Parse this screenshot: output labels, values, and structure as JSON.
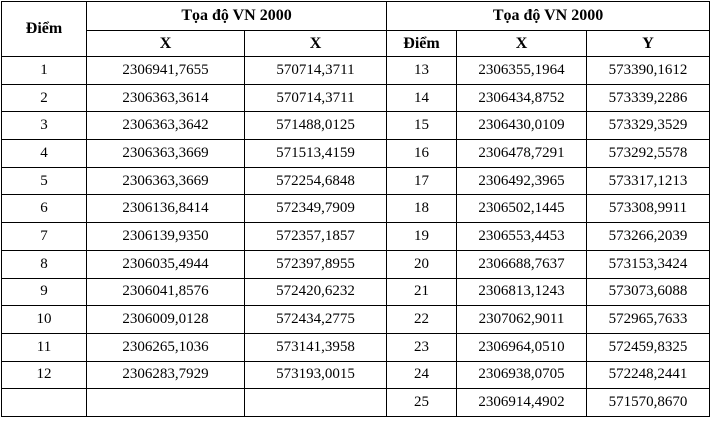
{
  "left": {
    "header": {
      "point": "Điểm",
      "group": "Tọa độ VN 2000",
      "col1": "X",
      "col2": "X"
    },
    "rows": [
      [
        "1",
        "2306941,7655",
        "570714,3711"
      ],
      [
        "2",
        "2306363,3614",
        "570714,3711"
      ],
      [
        "3",
        "2306363,3642",
        "571488,0125"
      ],
      [
        "4",
        "2306363,3669",
        "571513,4159"
      ],
      [
        "5",
        "2306363,3669",
        "572254,6848"
      ],
      [
        "6",
        "2306136,8414",
        "572349,7909"
      ],
      [
        "7",
        "2306139,9350",
        "572357,1857"
      ],
      [
        "8",
        "2306035,4944",
        "572397,8955"
      ],
      [
        "9",
        "2306041,8576",
        "572420,6232"
      ],
      [
        "10",
        "2306009,0128",
        "572434,2775"
      ],
      [
        "11",
        "2306265,1036",
        "573141,3958"
      ],
      [
        "12",
        "2306283,7929",
        "573193,0015"
      ]
    ]
  },
  "right": {
    "header": {
      "point": "Điểm",
      "group": "Tọa độ VN 2000",
      "col1": "X",
      "col2": "Y"
    },
    "rows": [
      [
        "13",
        "2306355,1964",
        "573390,1612"
      ],
      [
        "14",
        "2306434,8752",
        "573339,2286"
      ],
      [
        "15",
        "2306430,0109",
        "573329,3529"
      ],
      [
        "16",
        "2306478,7291",
        "573292,5578"
      ],
      [
        "17",
        "2306492,3965",
        "573317,1213"
      ],
      [
        "18",
        "2306502,1445",
        "573308,9911"
      ],
      [
        "19",
        "2306553,4453",
        "573266,2039"
      ],
      [
        "20",
        "2306688,7637",
        "573153,3424"
      ],
      [
        "21",
        "2306813,1243",
        "573073,6088"
      ],
      [
        "22",
        "2307062,9011",
        "572965,7633"
      ],
      [
        "23",
        "2306964,0510",
        "572459,8325"
      ],
      [
        "24",
        "2306938,0705",
        "572248,2441"
      ],
      [
        "25",
        "2306914,4902",
        "571570,8670"
      ]
    ]
  }
}
